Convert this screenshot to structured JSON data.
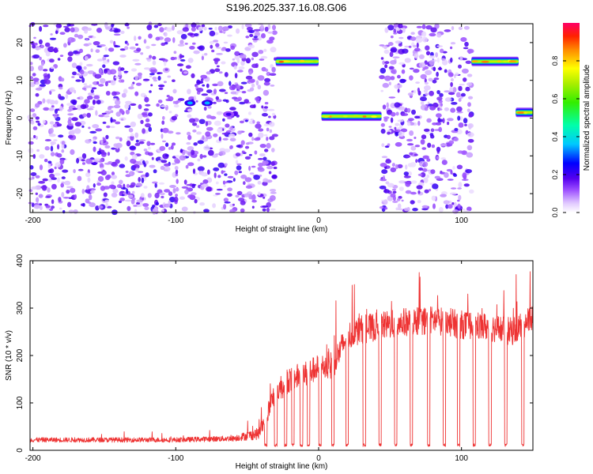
{
  "title": "S196.2025.337.16.08.G06",
  "chart_data": [
    {
      "type": "heatmap",
      "xlabel": "Height of straight line (km)",
      "ylabel": "Frequency (Hz)",
      "xlim": [
        -202,
        150
      ],
      "ylim": [
        -25,
        25
      ],
      "xticks": [
        -200,
        -100,
        0,
        100
      ],
      "xtick_labels": [
        "-200",
        "-100",
        "0",
        "100"
      ],
      "yticks": [
        -20,
        -10,
        0,
        10,
        20
      ],
      "ytick_labels": [
        "-20",
        "-10",
        "0",
        "10",
        "20"
      ],
      "colorbar": {
        "label": "Normalized spectral amplitude",
        "range": [
          0.0,
          1.0
        ],
        "ticks": [
          0.0,
          0.2,
          0.4,
          0.6,
          0.8
        ],
        "tick_labels": [
          "0.0",
          "0.2",
          "0.4",
          "0.6",
          "0.8"
        ]
      },
      "noise_regions": [
        {
          "x_start": -202,
          "x_end": -30
        },
        {
          "x_start": 44,
          "x_end": 107
        }
      ],
      "signal_bands": [
        {
          "x_start": -30,
          "x_end": 0,
          "freq": 15,
          "peak": 0.9
        },
        {
          "x_start": 2,
          "x_end": 44,
          "freq": 0.5,
          "peak": 0.9
        },
        {
          "x_start": 107,
          "x_end": 140,
          "freq": 15,
          "peak": 0.9
        },
        {
          "x_start": 138,
          "x_end": 150,
          "freq": 1.5,
          "peak": 0.9
        }
      ],
      "weak_features": [
        {
          "x": -90,
          "freq": 4,
          "peak": 0.35
        },
        {
          "x": -78,
          "freq": 4,
          "peak": 0.35
        },
        {
          "x": -63,
          "freq": 1,
          "peak": 0.2
        }
      ]
    },
    {
      "type": "line",
      "xlabel": "Height of straight line (km)",
      "ylabel": "SNR (10 * v/v)",
      "xlim": [
        -202,
        150
      ],
      "ylim": [
        0,
        400
      ],
      "xticks": [
        -200,
        -100,
        0,
        100
      ],
      "xtick_labels": [
        "-200",
        "-100",
        "0",
        "100"
      ],
      "yticks": [
        0,
        100,
        200,
        300,
        400
      ],
      "ytick_labels": [
        "0",
        "100",
        "200",
        "300",
        "400"
      ],
      "color": "#ee3333",
      "series": [
        {
          "name": "SNR",
          "trend_x": [
            -202,
            -100,
            -60,
            -42,
            -38,
            -32,
            -28,
            -20,
            -10,
            0,
            10,
            15,
            20,
            30,
            40,
            60,
            80,
            100,
            120,
            135,
            150
          ],
          "trend_y": [
            22,
            22,
            25,
            35,
            60,
            110,
            130,
            150,
            160,
            175,
            180,
            210,
            240,
            255,
            260,
            270,
            275,
            265,
            260,
            250,
            280
          ],
          "noise_amplitude": [
            10,
            10,
            12,
            25,
            40,
            50,
            55,
            55,
            55,
            55,
            60,
            60,
            60,
            60,
            60,
            60,
            60,
            60,
            60,
            60,
            60
          ],
          "dropouts_x": [
            -37,
            -30,
            -23,
            -18,
            -12,
            -7,
            1,
            10,
            20,
            32,
            43,
            54,
            65,
            77,
            88,
            98,
            109,
            120,
            131,
            143
          ],
          "dropout_floor": 8
        }
      ]
    }
  ]
}
